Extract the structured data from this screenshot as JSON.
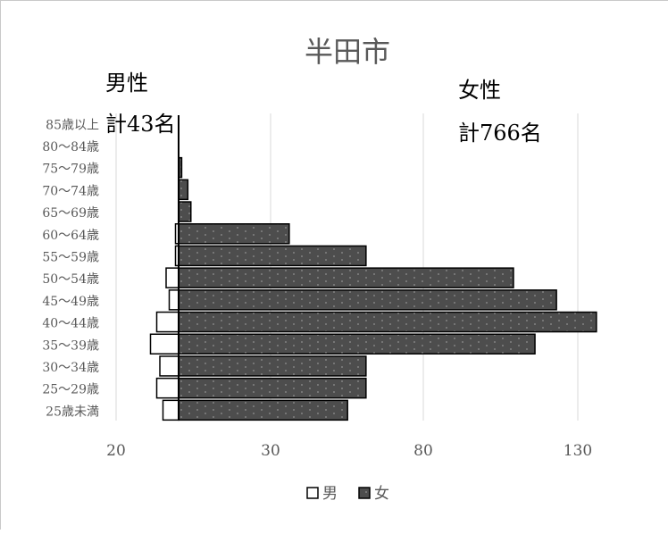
{
  "chart_data": {
    "type": "bar",
    "orientation": "horizontal",
    "title": "半田市",
    "categories": [
      "25歳未満",
      "25～29歳",
      "30～34歳",
      "35～39歳",
      "40～44歳",
      "45～49歳",
      "50～54歳",
      "55～59歳",
      "60～64歳",
      "65～69歳",
      "70～74歳",
      "75～79歳",
      "80～84歳",
      "85歳以上"
    ],
    "series": [
      {
        "name": "男",
        "values": [
          5,
          7,
          6,
          9,
          7,
          3,
          4,
          1,
          1,
          0,
          0,
          0,
          0,
          0
        ],
        "color": "#ffffff"
      },
      {
        "name": "女",
        "values": [
          55,
          61,
          61,
          116,
          136,
          123,
          109,
          61,
          36,
          4,
          3,
          1,
          0,
          0
        ],
        "color": "#4d4d4d"
      }
    ],
    "x_tick_labels": [
      "20",
      "30",
      "80",
      "130"
    ],
    "grid": true,
    "legend_position": "bottom",
    "annotations": {
      "male_label": "男性",
      "male_total": "計43名",
      "female_label": "女性",
      "female_total": "計766名"
    }
  }
}
